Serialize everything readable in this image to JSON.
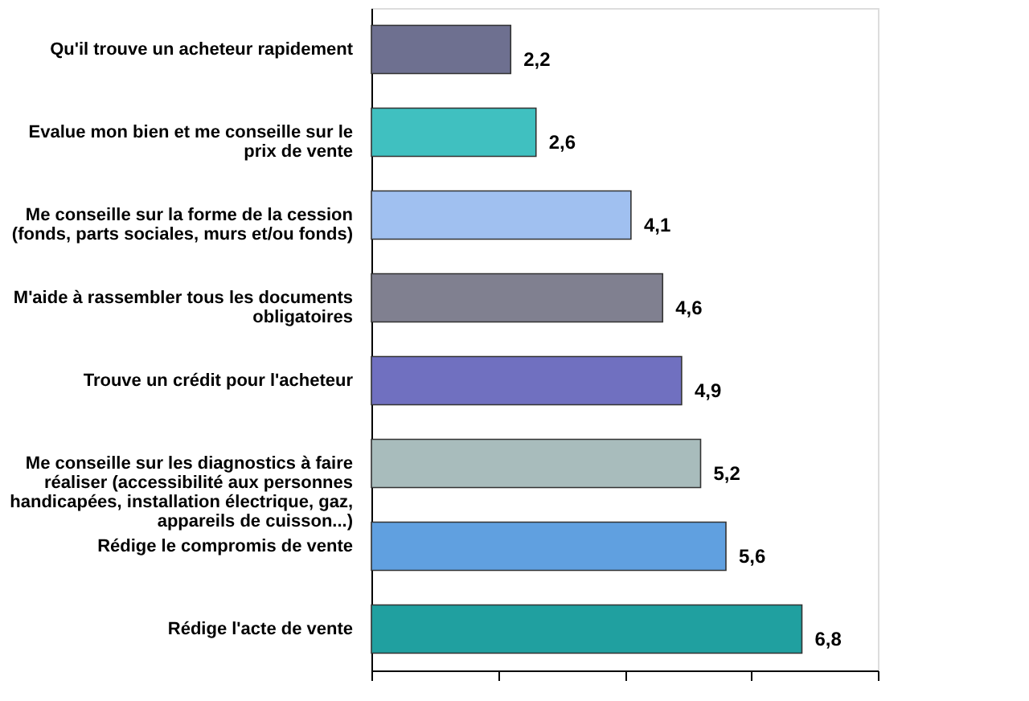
{
  "chart_data": {
    "type": "bar",
    "orientation": "horizontal",
    "categories": [
      "Qu'il trouve un acheteur rapidement",
      "Evalue  mon bien et me conseille sur le prix de vente",
      "Me conseille sur la forme de la cession (fonds, parts sociales, murs et/ou fonds)",
      "M'aide à rassembler tous les documents obligatoires",
      "Trouve un crédit pour l'acheteur",
      "Me conseille sur les diagnostics à faire réaliser (accessibilité aux personnes handicapées, installation électrique, gaz, appareils de cuisson...)",
      "Rédige le compromis de vente",
      "Rédige l'acte de vente"
    ],
    "values": [
      2.2,
      2.6,
      4.1,
      4.6,
      4.9,
      5.2,
      5.6,
      6.8
    ],
    "value_labels": [
      "2,2",
      "2,6",
      "4,1",
      "4,6",
      "4,9",
      "5,2",
      "5,6",
      "6,8"
    ],
    "colors": [
      "#6e7090",
      "#40c0c0",
      "#a0c0f0",
      "#808090",
      "#7070c0",
      "#a8bcbc",
      "#60a0e0",
      "#20a0a0"
    ],
    "xlim": [
      0,
      8
    ],
    "tick_labels": "y",
    "grid": false
  }
}
